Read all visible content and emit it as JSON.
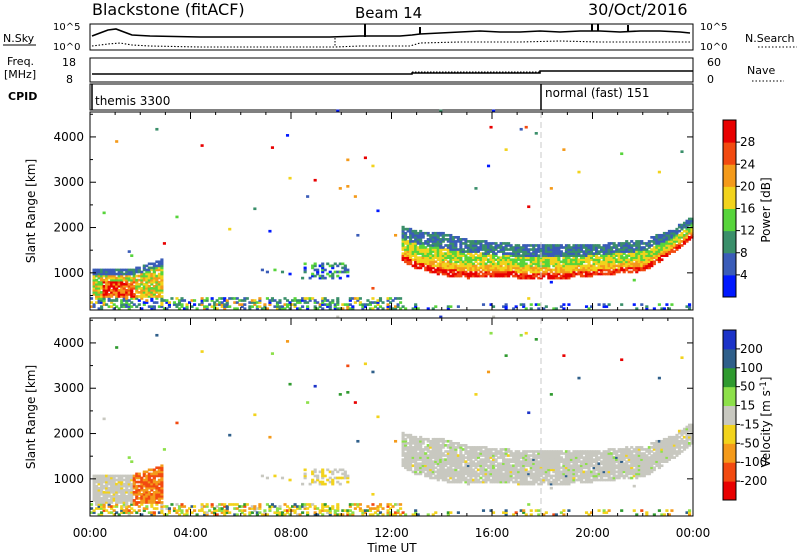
{
  "header": {
    "station": "Blackstone (fitACF)",
    "beam": "Beam 14",
    "date": "30/Oct/2016"
  },
  "strip_panels": {
    "noise": {
      "left_label": "N.Sky",
      "right_label": "N.Search",
      "left_ticks": [
        "10^5",
        "10^0"
      ],
      "right_ticks": [
        "10^5",
        "10^0"
      ]
    },
    "frequency": {
      "left_label_line1": "Freq.",
      "left_label_line2": "[MHz]",
      "right_label": "Nave",
      "left_ticks": [
        "18",
        "8"
      ],
      "right_ticks": [
        "60",
        "0"
      ]
    },
    "cpid": {
      "label": "CPID",
      "segments": [
        {
          "name": "themis 3300",
          "start_hour": 0
        },
        {
          "name": "normal (fast) 151",
          "start_hour": 18
        }
      ]
    }
  },
  "chart_data": [
    {
      "type": "heatmap",
      "quantity": "power",
      "ylabel": "Slant Range [km]",
      "xlabel": "",
      "xlim_hours": [
        0,
        24
      ],
      "ylim": [
        180,
        4550
      ],
      "y_ticks": [
        1000,
        2000,
        3000,
        4000
      ],
      "x_tick_labels": [
        "00:00",
        "04:00",
        "08:00",
        "12:00",
        "16:00",
        "20:00",
        "00:00"
      ],
      "colorbar": {
        "label": "Power [dB]",
        "ticks": [
          "4",
          "8",
          "12",
          "16",
          "20",
          "24",
          "28"
        ],
        "colors": [
          "#0018ff",
          "#3a5cb8",
          "#3a8f6a",
          "#57d43b",
          "#f2d31c",
          "#f49a1a",
          "#f24a10",
          "#e80000"
        ]
      },
      "features": {
        "early_echo": {
          "start_hour": 0.1,
          "end_hour": 2.9,
          "range_km": [
            300,
            1300
          ]
        },
        "main_band": {
          "hours": [
            12.3,
            13.0,
            14.0,
            15.0,
            16.0,
            17.0,
            18.0,
            19.0,
            20.0,
            21.0,
            22.0,
            23.0,
            23.9
          ],
          "lower_km": [
            1250,
            1050,
            900,
            850,
            900,
            850,
            830,
            850,
            900,
            950,
            1000,
            1350,
            1750
          ],
          "upper_km": [
            2000,
            1900,
            1850,
            1700,
            1650,
            1600,
            1600,
            1600,
            1600,
            1650,
            1700,
            1900,
            2200
          ]
        },
        "near_range_clutter": {
          "start_hour": 0,
          "end_hour": 12.2,
          "range_km": [
            180,
            600
          ]
        }
      }
    },
    {
      "type": "heatmap",
      "quantity": "velocity",
      "ylabel": "Slant Range [km]",
      "xlabel": "Time UT",
      "xlim_hours": [
        0,
        24
      ],
      "ylim": [
        180,
        4550
      ],
      "y_ticks": [
        1000,
        2000,
        3000,
        4000
      ],
      "x_tick_labels": [
        "00:00",
        "04:00",
        "08:00",
        "12:00",
        "16:00",
        "20:00",
        "00:00"
      ],
      "colorbar": {
        "label_main": "Velocity [m s",
        "label_sup": "-1",
        "label_end": "]",
        "ticks": [
          "200",
          "100",
          "50",
          "15",
          "-15",
          "-50",
          "-100",
          "-200"
        ],
        "colors": [
          "#1c33c8",
          "#2f5f8a",
          "#2f9a2f",
          "#8de04a",
          "#c8c8c0",
          "#f2d31c",
          "#f49a1a",
          "#f24a10",
          "#e80000"
        ]
      }
    }
  ]
}
